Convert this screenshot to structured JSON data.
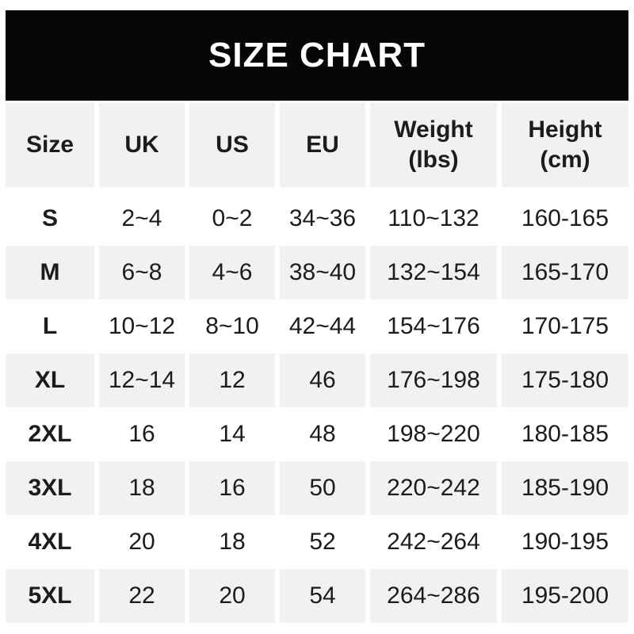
{
  "banner": {
    "title": "SIZE CHART"
  },
  "table": {
    "headers": [
      {
        "line1": "Size",
        "line2": ""
      },
      {
        "line1": "UK",
        "line2": ""
      },
      {
        "line1": "US",
        "line2": ""
      },
      {
        "line1": "EU",
        "line2": ""
      },
      {
        "line1": "Weight",
        "line2": "(lbs)"
      },
      {
        "line1": "Height",
        "line2": "(cm)"
      }
    ]
  },
  "chart_data": {
    "type": "table",
    "title": "SIZE CHART",
    "columns": [
      "Size",
      "UK",
      "US",
      "EU",
      "Weight (lbs)",
      "Height (cm)"
    ],
    "rows": [
      [
        "S",
        "2~4",
        "0~2",
        "34~36",
        "110~132",
        "160-165"
      ],
      [
        "M",
        "6~8",
        "4~6",
        "38~40",
        "132~154",
        "165-170"
      ],
      [
        "L",
        "10~12",
        "8~10",
        "42~44",
        "154~176",
        "170-175"
      ],
      [
        "XL",
        "12~14",
        "12",
        "46",
        "176~198",
        "175-180"
      ],
      [
        "2XL",
        "16",
        "14",
        "48",
        "198~220",
        "180-185"
      ],
      [
        "3XL",
        "18",
        "16",
        "50",
        "220~242",
        "185-190"
      ],
      [
        "4XL",
        "20",
        "18",
        "52",
        "242~264",
        "190-195"
      ],
      [
        "5XL",
        "22",
        "20",
        "54",
        "264~286",
        "195-200"
      ]
    ],
    "layout": {
      "alternating_row_colors": true,
      "gray_rows": [
        "M",
        "XL",
        "3XL",
        "5XL"
      ],
      "header_background": "#f1f1f2",
      "grid": "white gaps between cells, no borders"
    }
  },
  "colors": {
    "banner_bg": "#060606",
    "banner_text": "#ffffff",
    "cell_gray": "#f1f1f2",
    "text_dark": "#1c1c1e",
    "page_bg": "#ffffff"
  }
}
